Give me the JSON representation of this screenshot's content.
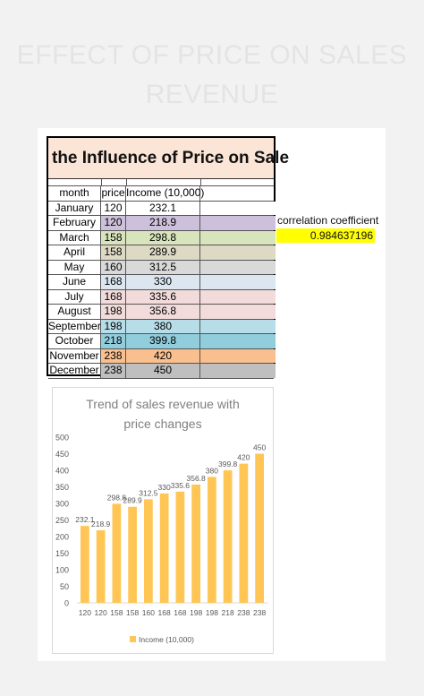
{
  "page": {
    "title_line1": "EFFECT OF PRICE ON SALES",
    "title_line2": "REVENUE"
  },
  "table": {
    "title": "the Influence of Price on Sale",
    "headers": [
      "month",
      "price",
      "Income (10,000)",
      ""
    ],
    "rows": [
      {
        "month": "January",
        "price": "120",
        "income": "232.1",
        "color": "#ffffff"
      },
      {
        "month": "February",
        "price": "120",
        "income": "218.9",
        "color": "#ccc0da"
      },
      {
        "month": "March",
        "price": "158",
        "income": "298.8",
        "color": "#d8e4bc"
      },
      {
        "month": "April",
        "price": "158",
        "income": "289.9",
        "color": "#ddd9c4"
      },
      {
        "month": "May",
        "price": "160",
        "income": "312.5",
        "color": "#d9d9d9"
      },
      {
        "month": "June",
        "price": "168",
        "income": "330",
        "color": "#dce6f1"
      },
      {
        "month": "July",
        "price": "168",
        "income": "335.6",
        "color": "#f2dcdb"
      },
      {
        "month": "August",
        "price": "198",
        "income": "356.8",
        "color": "#f2dcdb"
      },
      {
        "month": "September",
        "price": "198",
        "income": "380",
        "color": "#b7dee8"
      },
      {
        "month": "October",
        "price": "218",
        "income": "399.8",
        "color": "#92cddc"
      },
      {
        "month": "November",
        "price": "238",
        "income": "420",
        "color": "#fabf8f"
      },
      {
        "month": "December",
        "price": "238",
        "income": "450",
        "color": "#bfbfbf"
      }
    ]
  },
  "correlation": {
    "label": "correlation coefficient",
    "value": "0.984637196",
    "highlight": "#ffff00"
  },
  "chart_data": {
    "type": "bar",
    "title_line1": "Trend of sales revenue with",
    "title_line2": "price changes",
    "categories": [
      "120",
      "120",
      "158",
      "158",
      "160",
      "168",
      "168",
      "198",
      "198",
      "218",
      "238",
      "238"
    ],
    "series": [
      {
        "name": "Income (10,000)",
        "values": [
          232.1,
          218.9,
          298.8,
          289.9,
          312.5,
          330,
          335.6,
          356.8,
          380,
          399.8,
          420,
          450
        ],
        "color": "#ffc655"
      }
    ],
    "ylim": [
      0,
      500
    ],
    "yticks": [
      0,
      50,
      100,
      150,
      200,
      250,
      300,
      350,
      400,
      450,
      500
    ],
    "grid": false,
    "legend_position": "bottom",
    "xlabel": "",
    "ylabel": ""
  }
}
